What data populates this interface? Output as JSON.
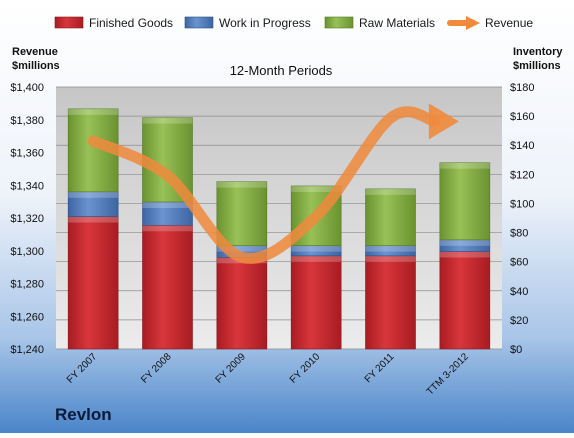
{
  "company": "Revlon",
  "colors": {
    "finished_goods": "#c0272d",
    "work_in_progress": "#4f78b8",
    "raw_materials": "#7fa83f",
    "revenue": "#f08a3c",
    "plot_bg": "#d4d4d4",
    "page_bg_top": "#ffffff",
    "page_bg_bottom": "#4a85c9"
  },
  "chart_data": {
    "type": "bar",
    "stacked": true,
    "title": "12-Month Periods",
    "y_left_label": [
      "Revenue",
      "$millions"
    ],
    "y_right_label": [
      "Inventory",
      "$millions"
    ],
    "categories": [
      "FY 2007",
      "FY 2008",
      "FY 2009",
      "FY 2010",
      "FY 2011",
      "TTM 3-2012"
    ],
    "y_left_ticks": [
      "$1,240",
      "$1,260",
      "$1,280",
      "$1,300",
      "$1,320",
      "$1,340",
      "$1,360",
      "$1,380",
      "$1,400"
    ],
    "y_right_ticks": [
      "$0",
      "$20",
      "$40",
      "$60",
      "$80",
      "$100",
      "$120",
      "$140",
      "$160",
      "$180"
    ],
    "ylim_left": [
      1240,
      1400
    ],
    "ylim_right": [
      0,
      180
    ],
    "grid": true,
    "legend": "top",
    "series": [
      {
        "name": "Finished Goods",
        "key": "finished_goods",
        "axis": "right",
        "values": [
          91,
          85,
          63,
          64,
          64,
          67
        ]
      },
      {
        "name": "Work in Progress",
        "key": "work_in_progress",
        "axis": "right",
        "values": [
          17,
          16,
          8,
          7,
          7,
          8
        ]
      },
      {
        "name": "Raw Materials",
        "key": "raw_materials",
        "axis": "right",
        "values": [
          57,
          58,
          44,
          41,
          39,
          53
        ]
      },
      {
        "name": "Revenue",
        "key": "revenue",
        "axis": "left",
        "type": "line",
        "values": [
          1367,
          1346,
          1296,
          1321,
          1381,
          1379
        ]
      }
    ]
  }
}
